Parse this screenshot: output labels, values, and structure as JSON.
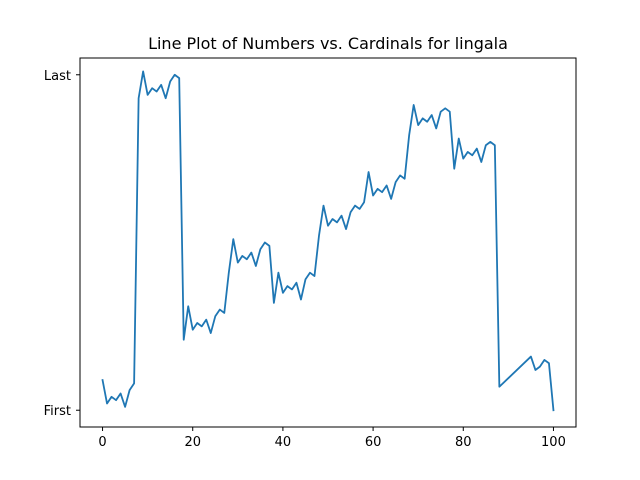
{
  "chart_data": {
    "type": "line",
    "title": "Line Plot of Numbers vs. Cardinals for lingala",
    "xlabel": "",
    "ylabel": "",
    "xlim": [
      -5,
      105
    ],
    "ylim": [
      -0.05,
      1.05
    ],
    "x_ticks": [
      0,
      20,
      40,
      60,
      80,
      100
    ],
    "x_tick_labels": [
      "0",
      "20",
      "40",
      "60",
      "80",
      "100"
    ],
    "y_ticks": [
      0,
      1
    ],
    "y_tick_labels": [
      "First",
      "Last"
    ],
    "grid": false,
    "series": [
      {
        "color": "#1f77b4",
        "x": [
          0,
          1,
          2,
          3,
          4,
          5,
          6,
          7,
          8,
          9,
          10,
          11,
          12,
          13,
          14,
          15,
          16,
          17,
          18,
          19,
          20,
          21,
          22,
          23,
          24,
          25,
          26,
          27,
          28,
          29,
          30,
          31,
          32,
          33,
          34,
          35,
          36,
          37,
          38,
          39,
          40,
          41,
          42,
          43,
          44,
          45,
          46,
          47,
          48,
          49,
          50,
          51,
          52,
          53,
          54,
          55,
          56,
          57,
          58,
          59,
          60,
          61,
          62,
          63,
          64,
          65,
          66,
          67,
          68,
          69,
          70,
          71,
          72,
          73,
          74,
          75,
          76,
          77,
          78,
          79,
          80,
          81,
          82,
          83,
          84,
          85,
          86,
          87,
          88,
          95,
          96,
          97,
          98,
          99,
          100
        ],
        "y": [
          0.09,
          0.02,
          0.04,
          0.03,
          0.05,
          0.01,
          0.06,
          0.08,
          0.93,
          1.01,
          0.94,
          0.96,
          0.95,
          0.97,
          0.93,
          0.98,
          1.0,
          0.99,
          0.21,
          0.31,
          0.24,
          0.26,
          0.25,
          0.27,
          0.23,
          0.28,
          0.3,
          0.29,
          0.41,
          0.51,
          0.44,
          0.46,
          0.45,
          0.47,
          0.43,
          0.48,
          0.5,
          0.49,
          0.32,
          0.41,
          0.35,
          0.37,
          0.36,
          0.38,
          0.33,
          0.39,
          0.41,
          0.4,
          0.52,
          0.61,
          0.55,
          0.57,
          0.56,
          0.58,
          0.54,
          0.59,
          0.61,
          0.6,
          0.62,
          0.71,
          0.64,
          0.66,
          0.65,
          0.67,
          0.63,
          0.68,
          0.7,
          0.69,
          0.82,
          0.91,
          0.85,
          0.87,
          0.86,
          0.88,
          0.84,
          0.89,
          0.9,
          0.89,
          0.72,
          0.81,
          0.75,
          0.77,
          0.76,
          0.78,
          0.74,
          0.79,
          0.8,
          0.79,
          0.07,
          0.16,
          0.12,
          0.13,
          0.15,
          0.14,
          0.0
        ]
      }
    ]
  }
}
